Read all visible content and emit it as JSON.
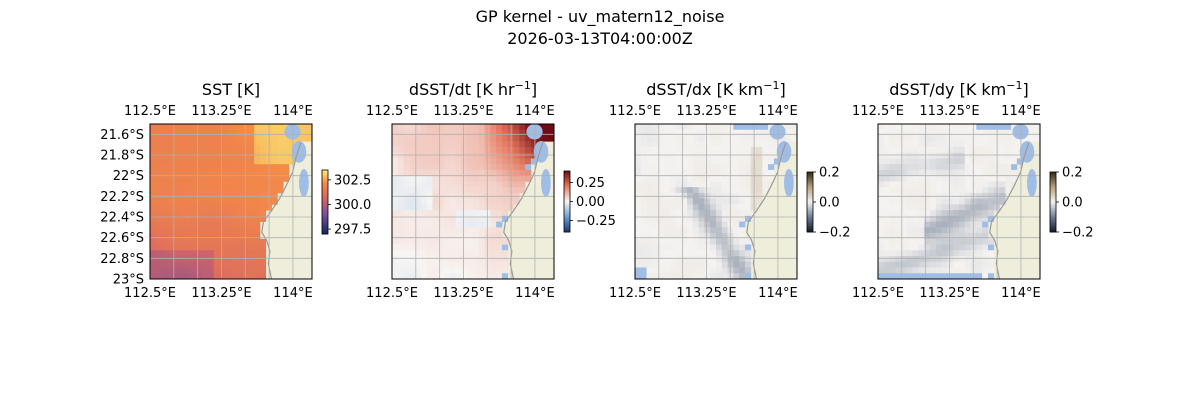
{
  "suptitle": {
    "line1": "GP kernel - uv_matern12_noise",
    "line2": "2026-03-13T04:00:00Z"
  },
  "chart_data": [
    {
      "type": "heatmap",
      "title_main": "SST [K]",
      "title_sup": "",
      "title_tail": "",
      "colormap": "plasma-like (navy-purple-orange-yellow)",
      "colorbar_ticks": [
        "302.5",
        "300.0",
        "297.5"
      ],
      "colorbar_range": [
        297,
        303.5
      ],
      "x_top_ticks": [
        "112.5°E",
        "113.25°E",
        "114°E"
      ],
      "x_bottom_ticks": [
        "112.5°E",
        "113.25°E",
        "114°E"
      ],
      "y_ticks": [
        "21.6°S",
        "21.8°S",
        "22°S",
        "22.2°S",
        "22.4°S",
        "22.6°S",
        "22.8°S",
        "23°S"
      ],
      "xlim": [
        112.5,
        114.2
      ],
      "ylim": [
        -23.0,
        -21.5
      ],
      "grid": true
    },
    {
      "type": "heatmap",
      "title_main": "dSST/dt [K hr",
      "title_sup": "−1",
      "title_tail": "]",
      "colormap": "diverging blue-white-red",
      "colorbar_ticks": [
        "0.25",
        "0.00",
        "−0.25"
      ],
      "colorbar_range": [
        -0.4,
        0.4
      ],
      "x_top_ticks": [
        "112.5°E",
        "113.25°E",
        "114°E"
      ],
      "x_bottom_ticks": [
        "112.5°E",
        "113.25°E",
        "114°E"
      ],
      "xlim": [
        112.5,
        114.2
      ],
      "ylim": [
        -23.0,
        -21.5
      ],
      "grid": true
    },
    {
      "type": "heatmap",
      "title_main": "dSST/dx [K km",
      "title_sup": "−1",
      "title_tail": "]",
      "colormap": "diverging slate-white-tan",
      "colorbar_ticks": [
        "0.2",
        "0.0",
        "−0.2"
      ],
      "colorbar_range": [
        -0.2,
        0.2
      ],
      "x_top_ticks": [
        "112.5°E",
        "113.25°E",
        "114°E"
      ],
      "x_bottom_ticks": [
        "112.5°E",
        "113.25°E",
        "114°E"
      ],
      "xlim": [
        112.5,
        114.2
      ],
      "ylim": [
        -23.0,
        -21.5
      ],
      "grid": true
    },
    {
      "type": "heatmap",
      "title_main": "dSST/dy [K km",
      "title_sup": "−1",
      "title_tail": "]",
      "colormap": "diverging slate-white-tan",
      "colorbar_ticks": [
        "0.2",
        "0.0",
        "−0.2"
      ],
      "colorbar_range": [
        -0.2,
        0.2
      ],
      "x_top_ticks": [
        "112.5°E",
        "113.25°E",
        "114°E"
      ],
      "x_bottom_ticks": [
        "112.5°E",
        "113.25°E",
        "114°E"
      ],
      "xlim": [
        112.5,
        114.2
      ],
      "ylim": [
        -23.0,
        -21.5
      ],
      "grid": true
    }
  ],
  "colors": {
    "land": "#efeedb",
    "coast": "#999999",
    "ocean_mask": "#a0bde6",
    "gridline": "#b0b0b0"
  }
}
